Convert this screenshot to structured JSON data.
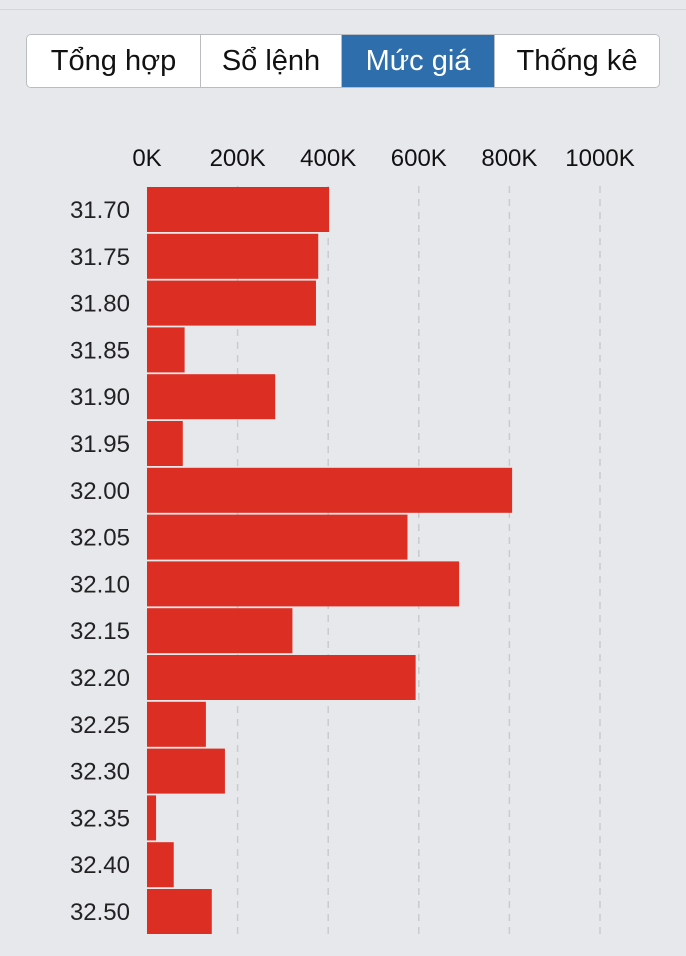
{
  "tabs": [
    {
      "label": "Tổng hợp",
      "active": false
    },
    {
      "label": "Sổ lệnh",
      "active": false
    },
    {
      "label": "Mức giá",
      "active": true
    },
    {
      "label": "Thống kê",
      "active": false
    }
  ],
  "colors": {
    "bar": "#dc2e22",
    "active_tab": "#2f6eac",
    "grid": "#c9cbcf"
  },
  "chart_data": {
    "type": "bar",
    "orientation": "horizontal",
    "title": "",
    "xlabel": "",
    "ylabel": "",
    "xlim": [
      0,
      1000000
    ],
    "x_ticks": [
      0,
      200000,
      400000,
      600000,
      800000,
      1000000
    ],
    "x_tick_labels": [
      "0K",
      "200K",
      "400K",
      "600K",
      "800K",
      "1000K"
    ],
    "grid": true,
    "categories": [
      "31.70",
      "31.75",
      "31.80",
      "31.85",
      "31.90",
      "31.95",
      "32.00",
      "32.05",
      "32.10",
      "32.15",
      "32.20",
      "32.25",
      "32.30",
      "32.35",
      "32.40",
      "32.50"
    ],
    "values": [
      402000,
      378000,
      373000,
      83000,
      283000,
      79000,
      806000,
      575000,
      689000,
      321000,
      593000,
      130000,
      172000,
      20000,
      59000,
      143000
    ]
  }
}
